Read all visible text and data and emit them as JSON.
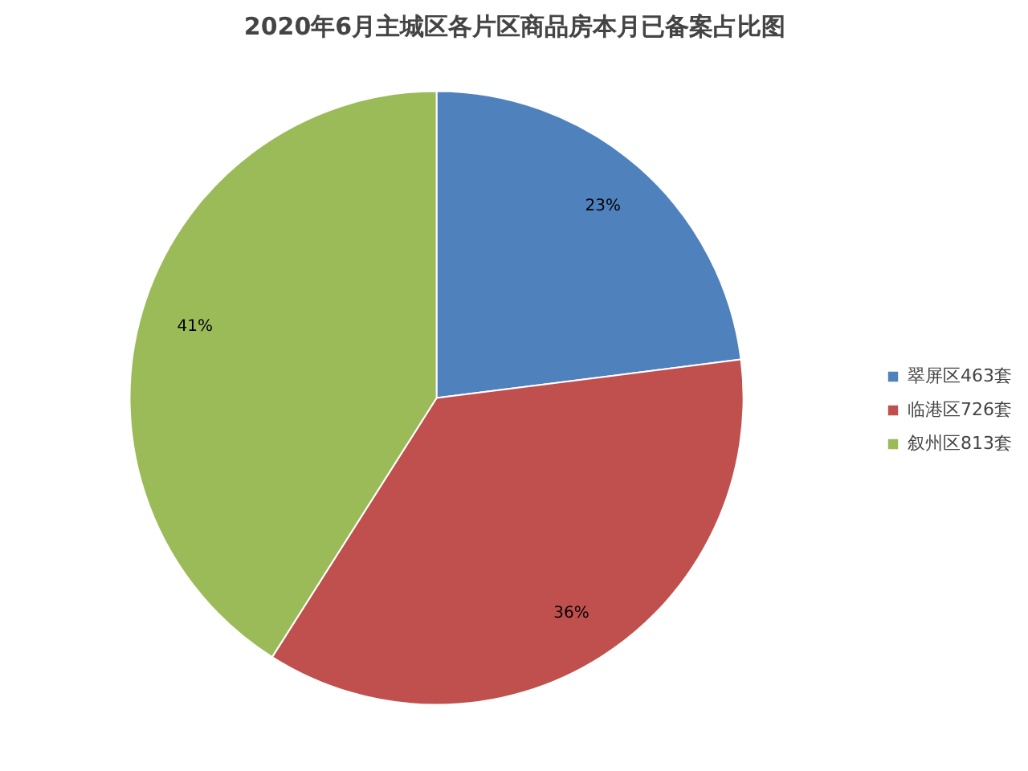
{
  "chart_data": {
    "type": "pie",
    "title": "2020年6月主城区各片区商品房本月已备案占比图",
    "categories": [
      "翠屏区463套",
      "临港区726套",
      "叙州区813套"
    ],
    "values": [
      23,
      36,
      41
    ],
    "value_labels": [
      "23%",
      "36%",
      "41%"
    ],
    "colors": [
      "#4f81bd",
      "#c0504d",
      "#9bbb59"
    ],
    "legend": "right"
  }
}
